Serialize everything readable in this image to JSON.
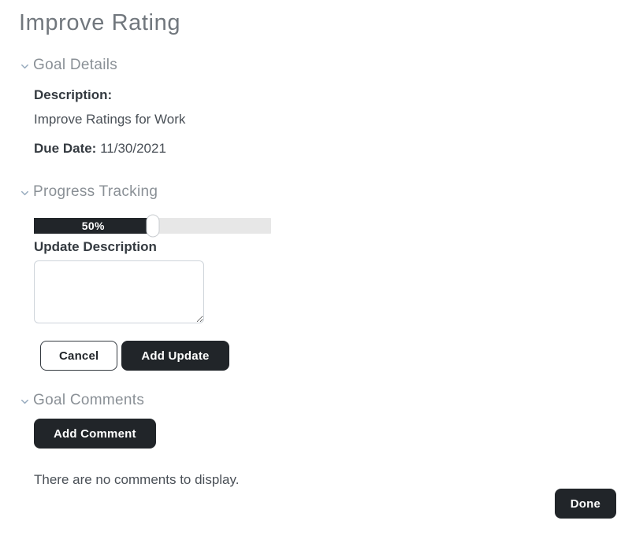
{
  "page": {
    "title": "Improve Rating"
  },
  "icons": {
    "section_chevron": "chevron-down"
  },
  "colors": {
    "accent_dark": "#212529",
    "title_gray": "#71777d",
    "section_header_gray": "#8a9096",
    "chevron_blue_gray": "#97abbe",
    "progress_track": "#e7e7e7",
    "progress_fill": "#212529"
  },
  "sections": {
    "goal_details": {
      "header": "Goal Details",
      "description_label": "Description:",
      "description_value": "Improve Ratings for Work",
      "due_date_label": "Due Date:",
      "due_date_value": "11/30/2021"
    },
    "progress_tracking": {
      "header": "Progress Tracking",
      "progress_value": 50,
      "progress_percent_label": "50%",
      "update_description_label": "Update Description",
      "textarea_value": "",
      "cancel_label": "Cancel",
      "add_update_label": "Add Update"
    },
    "goal_comments": {
      "header": "Goal Comments",
      "add_comment_label": "Add Comment",
      "empty_message": "There are no comments to display."
    }
  },
  "footer": {
    "done_label": "Done"
  }
}
